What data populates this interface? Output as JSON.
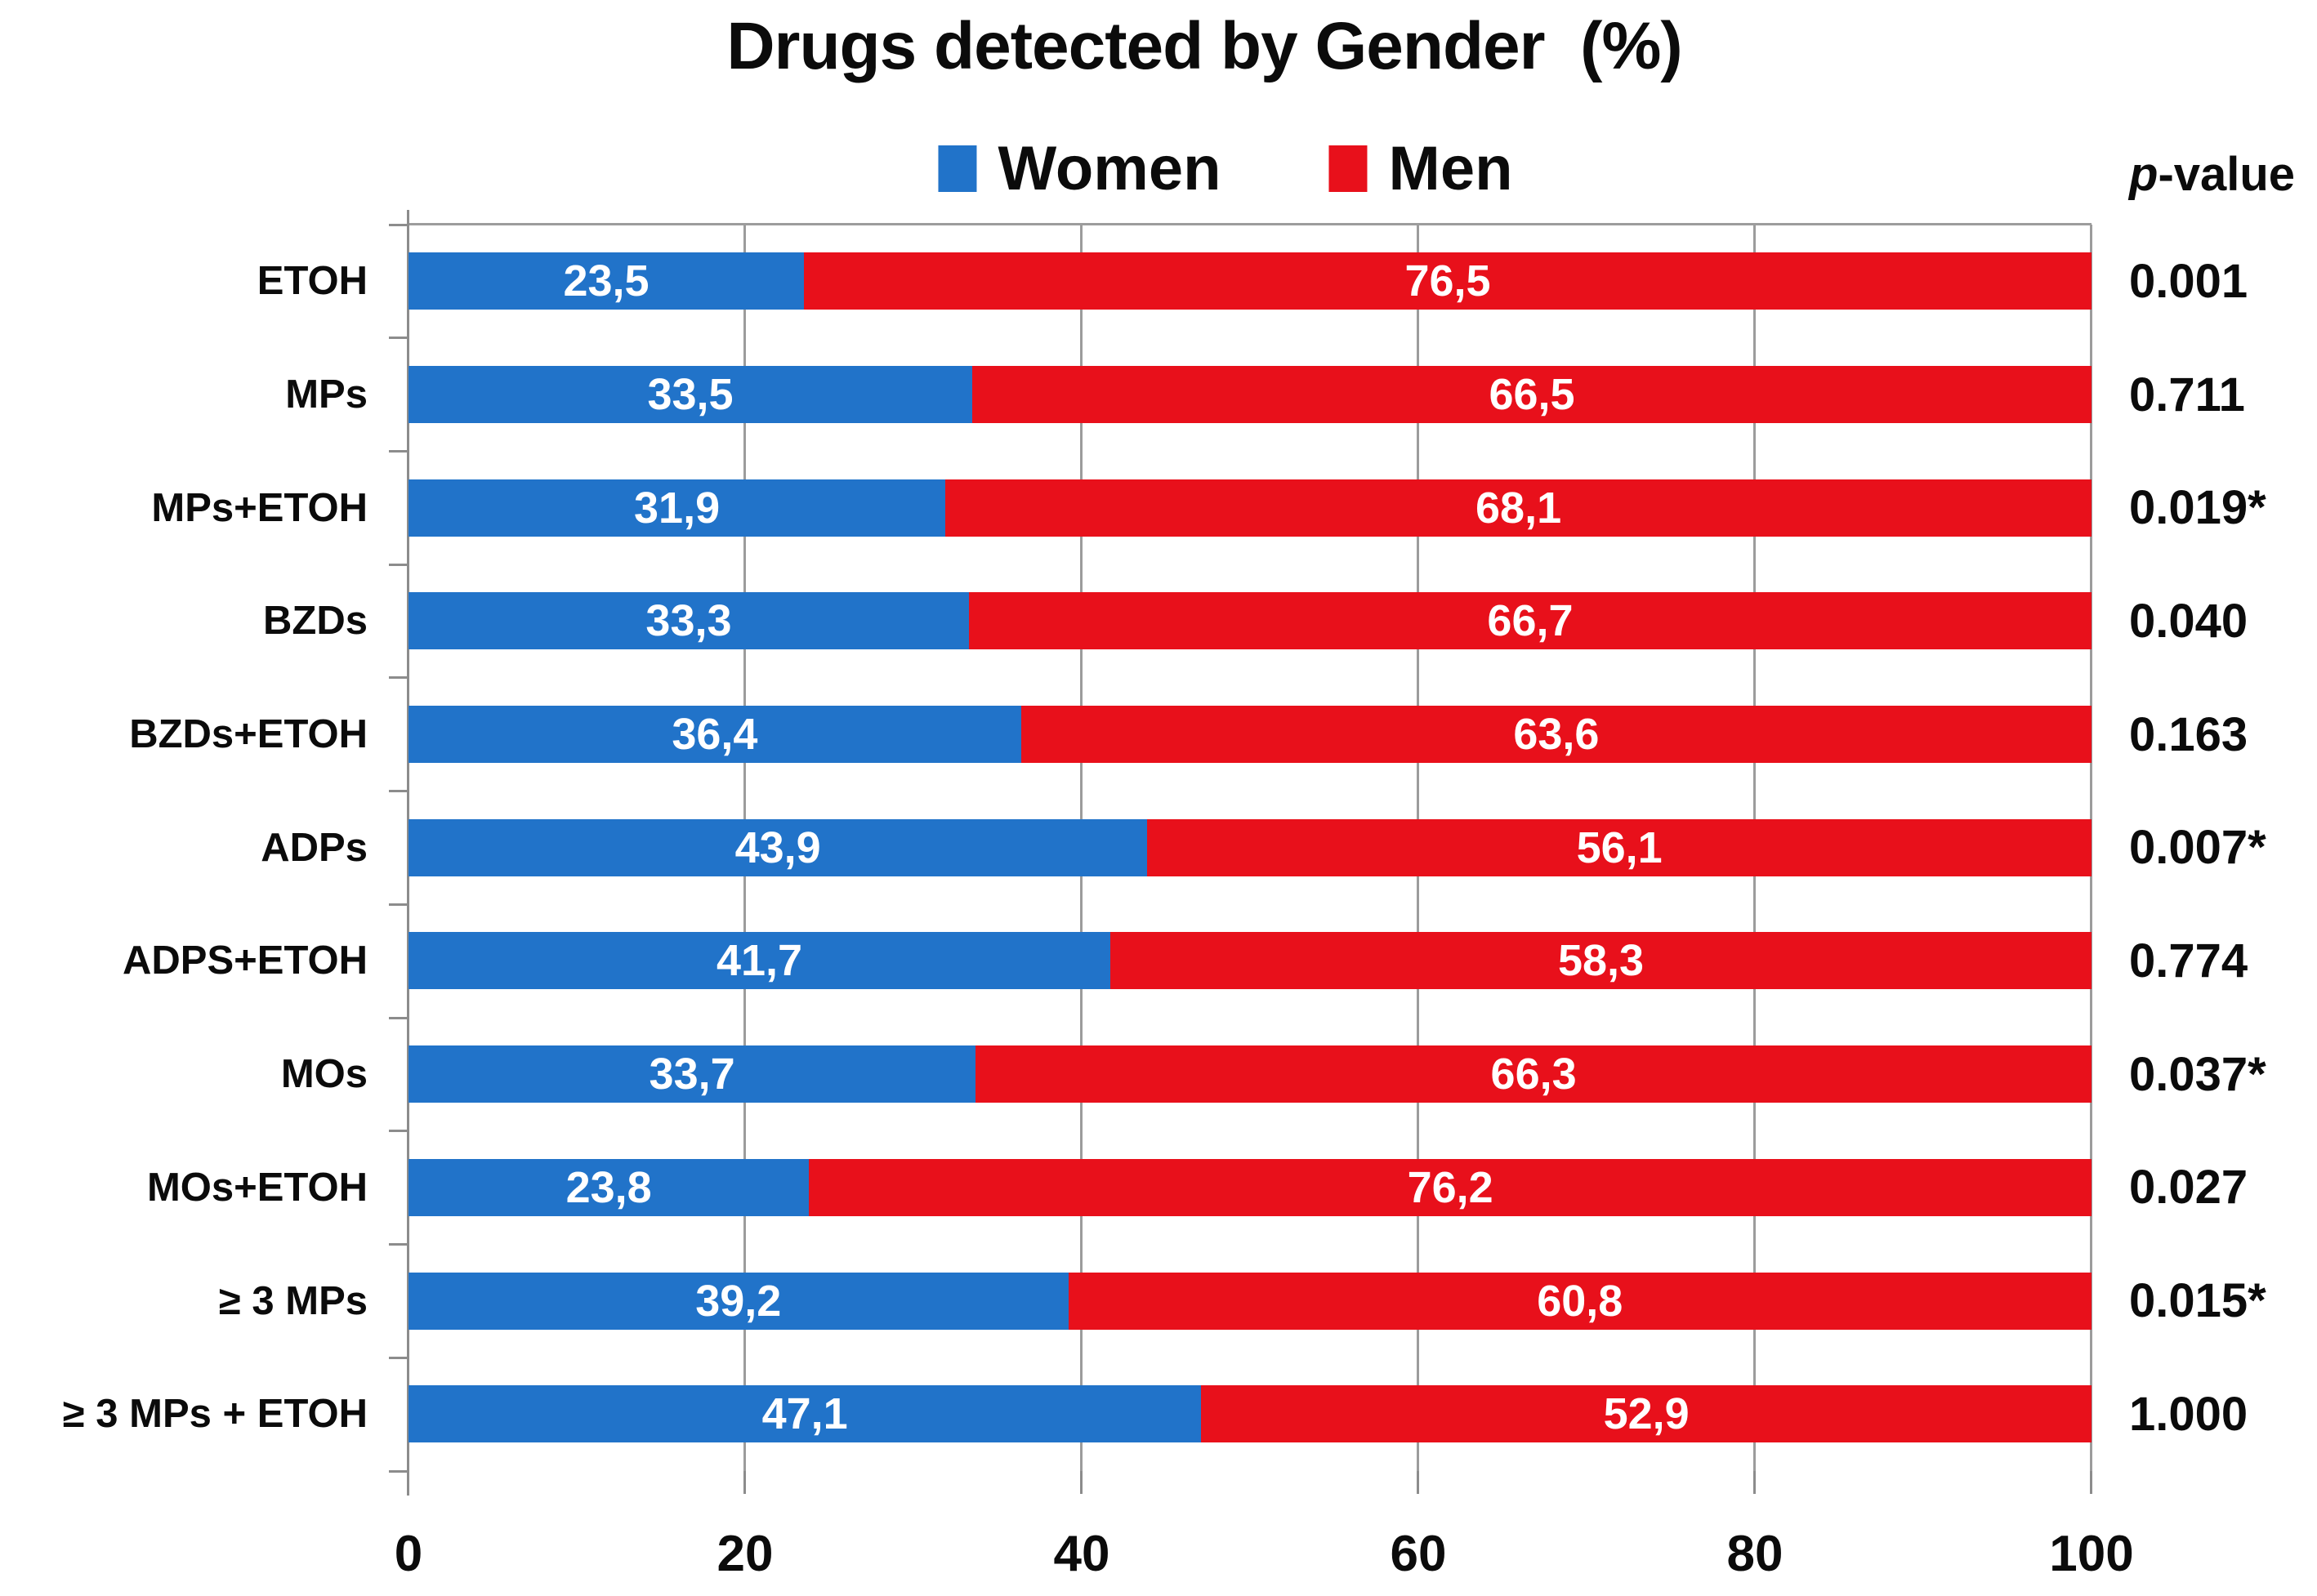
{
  "title": "Drugs detected by Gender  (%)",
  "pvalue_header": {
    "italic": "p",
    "rest": "-value"
  },
  "colors": {
    "women_blue": "#2173C9",
    "men_red": "#E8101B",
    "grid_gray": "#9C9C9C",
    "axis_gray": "#8C8C8C"
  },
  "legend": [
    {
      "label": "Women",
      "color": "#2173C9"
    },
    {
      "label": "Men",
      "color": "#E8101B"
    }
  ],
  "chart_data": {
    "type": "bar",
    "orientation": "horizontal",
    "stacked": true,
    "title": "Drugs detected by Gender (%)",
    "legend_position": "top",
    "grid": true,
    "xlim": [
      0,
      100
    ],
    "x_ticks": [
      "0",
      "20",
      "40",
      "60",
      "80",
      "100"
    ],
    "categories": [
      "ETOH",
      "MPs",
      "MPs+ETOH",
      "BZDs",
      "BZDs+ETOH",
      "ADPs",
      "ADPS+ETOH",
      "MOs",
      "MOs+ETOH",
      "≥ 3 MPs",
      "≥ 3 MPs + ETOH"
    ],
    "series": [
      {
        "name": "Women",
        "color": "#2173C9",
        "values": [
          23.5,
          33.5,
          31.9,
          33.3,
          36.4,
          43.9,
          41.7,
          33.7,
          23.8,
          39.2,
          47.1
        ]
      },
      {
        "name": "Men",
        "color": "#E8101B",
        "values": [
          76.5,
          66.5,
          68.1,
          66.7,
          63.6,
          56.1,
          58.3,
          66.3,
          76.2,
          60.8,
          52.9
        ]
      }
    ],
    "value_labels": {
      "women": [
        "23,5",
        "33,5",
        "31,9",
        "33,3",
        "36,4",
        "43,9",
        "41,7",
        "33,7",
        "23,8",
        "39,2",
        "47,1"
      ],
      "men": [
        "76,5",
        "66,5",
        "68,1",
        "66,7",
        "63,6",
        "56,1",
        "58,3",
        "66,3",
        "76,2",
        "60,8",
        "52,9"
      ]
    },
    "p_values": [
      "0.001",
      "0.711",
      "0.019*",
      "0.040",
      "0.163",
      "0.007*",
      "0.774",
      "0.037*",
      "0.027",
      "0.015*",
      "1.000"
    ]
  }
}
